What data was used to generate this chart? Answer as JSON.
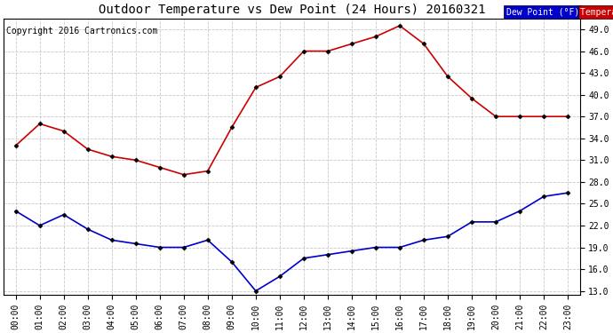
{
  "title": "Outdoor Temperature vs Dew Point (24 Hours) 20160321",
  "copyright": "Copyright 2016 Cartronics.com",
  "hours": [
    "00:00",
    "01:00",
    "02:00",
    "03:00",
    "04:00",
    "05:00",
    "06:00",
    "07:00",
    "08:00",
    "09:00",
    "10:00",
    "11:00",
    "12:00",
    "13:00",
    "14:00",
    "15:00",
    "16:00",
    "17:00",
    "18:00",
    "19:00",
    "20:00",
    "21:00",
    "22:00",
    "23:00"
  ],
  "temperature": [
    33.0,
    36.0,
    35.0,
    32.5,
    31.5,
    31.0,
    30.0,
    29.0,
    29.5,
    35.5,
    41.0,
    42.5,
    46.0,
    46.0,
    47.0,
    48.0,
    49.5,
    47.0,
    42.5,
    39.5,
    37.0,
    37.0,
    37.0,
    37.0
  ],
  "dew_point": [
    24.0,
    22.0,
    23.5,
    21.5,
    20.0,
    19.5,
    19.0,
    19.0,
    20.0,
    17.0,
    13.0,
    15.0,
    17.5,
    18.0,
    18.5,
    19.0,
    19.0,
    20.0,
    20.5,
    22.5,
    22.5,
    24.0,
    26.0,
    26.5
  ],
  "temp_color": "#cc0000",
  "dew_color": "#0000cc",
  "ylim": [
    12.5,
    50.5
  ],
  "yticks": [
    13.0,
    16.0,
    19.0,
    22.0,
    25.0,
    28.0,
    31.0,
    34.0,
    37.0,
    40.0,
    43.0,
    46.0,
    49.0
  ],
  "bg_color": "#ffffff",
  "grid_color": "#bbbbbb",
  "legend_dew_bg": "#0000cc",
  "legend_temp_bg": "#cc0000",
  "title_fontsize": 10,
  "copyright_fontsize": 7,
  "tick_fontsize": 7
}
